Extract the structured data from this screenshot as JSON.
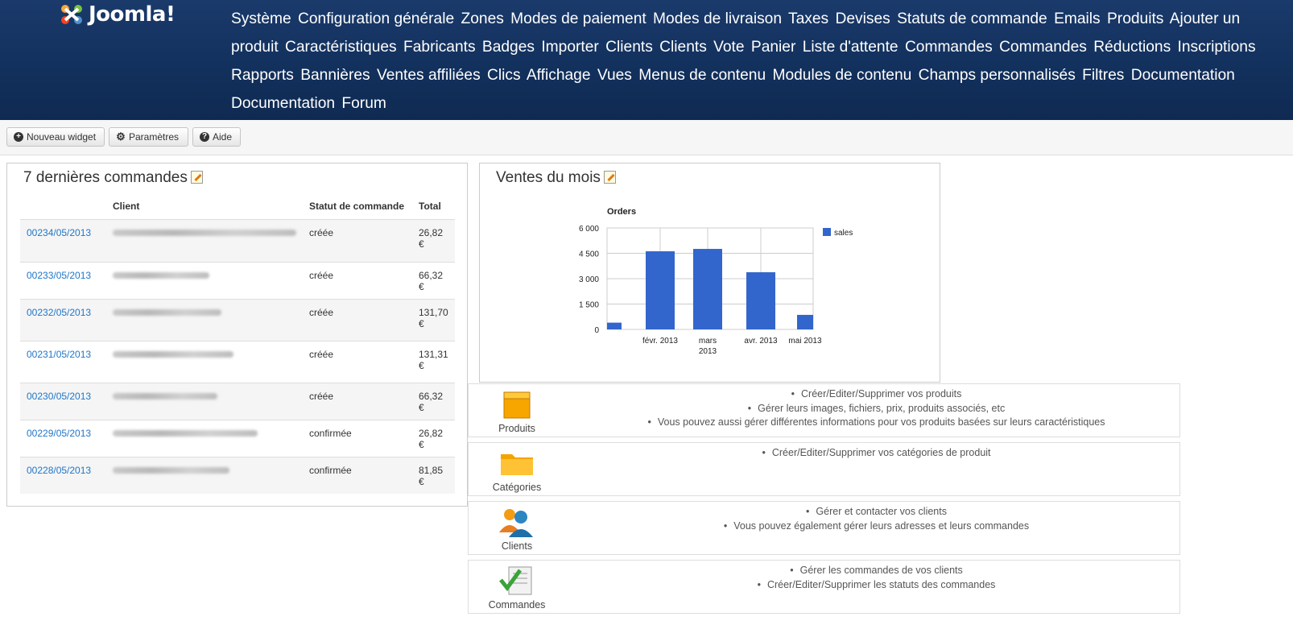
{
  "app": {
    "logo_text": "Joomla!"
  },
  "menu": [
    "Système",
    "Configuration générale",
    "Zones",
    "Modes de paiement",
    "Modes de livraison",
    "Taxes",
    "Devises",
    "Statuts de commande",
    "Emails",
    "Produits",
    "Ajouter un produit",
    "Caractéristiques",
    "Fabricants",
    "Badges",
    "Importer",
    "Clients",
    "Clients",
    "Vote",
    "Panier",
    "Liste d'attente",
    "Commandes",
    "Commandes",
    "Réductions",
    "Inscriptions",
    "Rapports",
    "Bannières",
    "Ventes affiliées",
    "Clics",
    "Affichage",
    "Vues",
    "Menus de contenu",
    "Modules de contenu",
    "Champs personnalisés",
    "Filtres",
    "Documentation",
    "Documentation",
    "Forum"
  ],
  "toolbar": {
    "new_widget": "Nouveau widget",
    "settings": "Paramètres",
    "help": "Aide"
  },
  "orders_widget": {
    "title": "7 dernières commandes",
    "headers": {
      "client": "Client",
      "status": "Statut de commande",
      "total": "Total"
    },
    "rows": [
      {
        "number": "00234/05/2013",
        "status": "créée",
        "total": "26,82 €"
      },
      {
        "number": "00233/05/2013",
        "status": "créée",
        "total": "66,32 €"
      },
      {
        "number": "00232/05/2013",
        "status": "créée",
        "total": "131,70 €"
      },
      {
        "number": "00231/05/2013",
        "status": "créée",
        "total": "131,31 €"
      },
      {
        "number": "00230/05/2013",
        "status": "créée",
        "total": "66,32 €"
      },
      {
        "number": "00229/05/2013",
        "status": "confirmée",
        "total": "26,82 €"
      },
      {
        "number": "00228/05/2013",
        "status": "confirmée",
        "total": "81,85 €"
      }
    ]
  },
  "sales_widget": {
    "title": "Ventes du mois"
  },
  "chart_data": {
    "type": "bar",
    "title": "Orders",
    "categories": [
      "",
      "févr. 2013",
      "mars 2013",
      "avr. 2013",
      "mai 2013"
    ],
    "series": [
      {
        "name": "sales",
        "values": [
          400,
          4620,
          4760,
          3380,
          860
        ],
        "color": "#3366cc"
      }
    ],
    "ylim": [
      0,
      6000
    ],
    "yticks": [
      "0",
      "1 500",
      "3 000",
      "4 500",
      "6 000"
    ],
    "ytick_values": [
      0,
      1500,
      3000,
      4500,
      6000
    ],
    "legend_position": "right",
    "grid": true
  },
  "quick_links": [
    {
      "label": "Produits",
      "icon": "box-icon",
      "lines": [
        "Créer/Editer/Supprimer vos produits",
        "Gérer leurs images, fichiers, prix, produits associés, etc",
        "Vous pouvez aussi gérer différentes informations pour vos produits basées sur leurs caractéristiques"
      ]
    },
    {
      "label": "Catégories",
      "icon": "folder-icon",
      "lines": [
        "Créer/Editer/Supprimer vos catégories de produit"
      ]
    },
    {
      "label": "Clients",
      "icon": "users-icon",
      "lines": [
        "Gérer et contacter vos clients",
        "Vous pouvez également gérer leurs adresses et leurs commandes"
      ]
    },
    {
      "label": "Commandes",
      "icon": "orders-icon",
      "lines": [
        "Gérer les commandes de vos clients",
        "Créer/Editer/Supprimer les statuts des commandes"
      ]
    }
  ]
}
